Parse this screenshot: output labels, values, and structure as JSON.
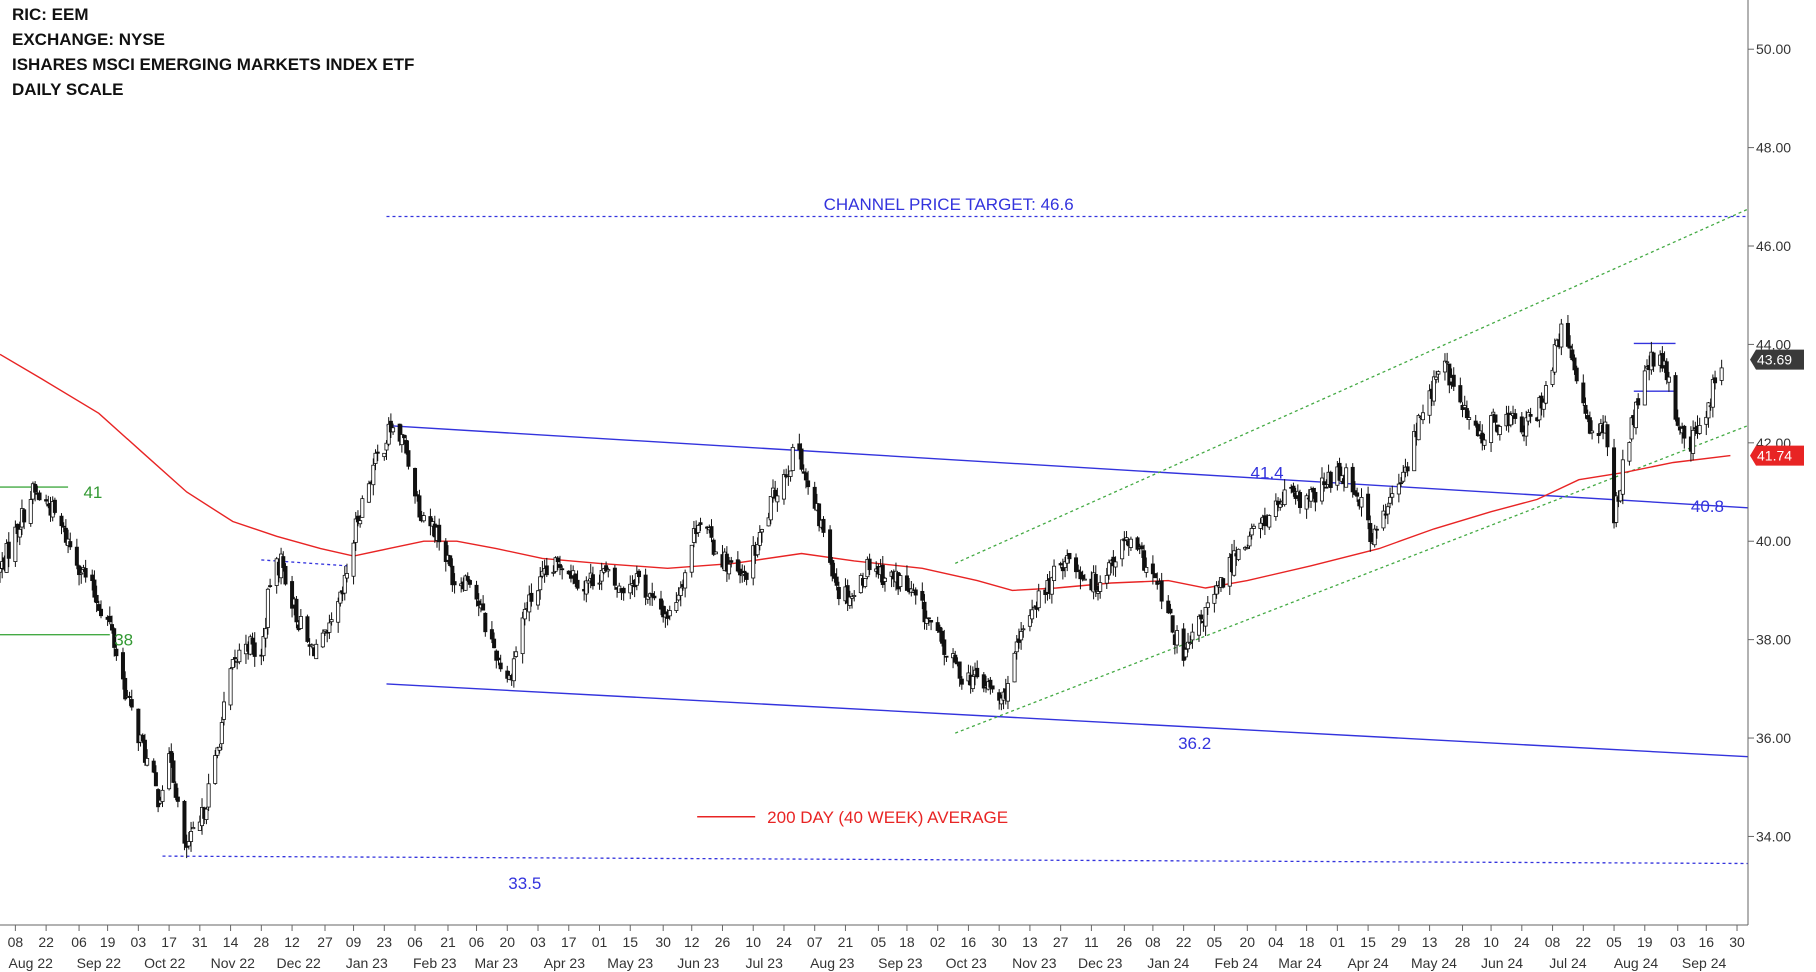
{
  "header": {
    "ric": "RIC: EEM",
    "exchange": "EXCHANGE: NYSE",
    "name": "ISHARES MSCI EMERGING MARKETS INDEX ETF",
    "scale": "DAILY SCALE"
  },
  "chart_data": {
    "type": "candlestick",
    "y_axis": {
      "position": "right",
      "range": [
        32.2,
        51.0
      ],
      "ticks": [
        34.0,
        36.0,
        38.0,
        40.0,
        42.0,
        44.0,
        46.0,
        48.0,
        50.0
      ]
    },
    "x_axis": {
      "range": [
        "2022-08-01",
        "2024-10-05"
      ],
      "day_ticks": [
        {
          "date": "2022-08-08",
          "label": "08"
        },
        {
          "date": "2022-08-22",
          "label": "22"
        },
        {
          "date": "2022-09-06",
          "label": "06"
        },
        {
          "date": "2022-09-19",
          "label": "19"
        },
        {
          "date": "2022-10-03",
          "label": "03"
        },
        {
          "date": "2022-10-17",
          "label": "17"
        },
        {
          "date": "2022-10-31",
          "label": "31"
        },
        {
          "date": "2022-11-14",
          "label": "14"
        },
        {
          "date": "2022-11-28",
          "label": "28"
        },
        {
          "date": "2022-12-12",
          "label": "12"
        },
        {
          "date": "2022-12-27",
          "label": "27"
        },
        {
          "date": "2023-01-09",
          "label": "09"
        },
        {
          "date": "2023-01-23",
          "label": "23"
        },
        {
          "date": "2023-02-06",
          "label": "06"
        },
        {
          "date": "2023-02-21",
          "label": "21"
        },
        {
          "date": "2023-03-06",
          "label": "06"
        },
        {
          "date": "2023-03-20",
          "label": "20"
        },
        {
          "date": "2023-04-03",
          "label": "03"
        },
        {
          "date": "2023-04-17",
          "label": "17"
        },
        {
          "date": "2023-05-01",
          "label": "01"
        },
        {
          "date": "2023-05-15",
          "label": "15"
        },
        {
          "date": "2023-05-30",
          "label": "30"
        },
        {
          "date": "2023-06-12",
          "label": "12"
        },
        {
          "date": "2023-06-26",
          "label": "26"
        },
        {
          "date": "2023-07-10",
          "label": "10"
        },
        {
          "date": "2023-07-24",
          "label": "24"
        },
        {
          "date": "2023-08-07",
          "label": "07"
        },
        {
          "date": "2023-08-21",
          "label": "21"
        },
        {
          "date": "2023-09-05",
          "label": "05"
        },
        {
          "date": "2023-09-18",
          "label": "18"
        },
        {
          "date": "2023-10-02",
          "label": "02"
        },
        {
          "date": "2023-10-16",
          "label": "16"
        },
        {
          "date": "2023-10-30",
          "label": "30"
        },
        {
          "date": "2023-11-13",
          "label": "13"
        },
        {
          "date": "2023-11-27",
          "label": "27"
        },
        {
          "date": "2023-12-11",
          "label": "11"
        },
        {
          "date": "2023-12-26",
          "label": "26"
        },
        {
          "date": "2024-01-08",
          "label": "08"
        },
        {
          "date": "2024-01-22",
          "label": "22"
        },
        {
          "date": "2024-02-05",
          "label": "05"
        },
        {
          "date": "2024-02-20",
          "label": "20"
        },
        {
          "date": "2024-03-04",
          "label": "04"
        },
        {
          "date": "2024-03-18",
          "label": "18"
        },
        {
          "date": "2024-04-01",
          "label": "01"
        },
        {
          "date": "2024-04-15",
          "label": "15"
        },
        {
          "date": "2024-04-29",
          "label": "29"
        },
        {
          "date": "2024-05-13",
          "label": "13"
        },
        {
          "date": "2024-05-28",
          "label": "28"
        },
        {
          "date": "2024-06-10",
          "label": "10"
        },
        {
          "date": "2024-06-24",
          "label": "24"
        },
        {
          "date": "2024-07-08",
          "label": "08"
        },
        {
          "date": "2024-07-22",
          "label": "22"
        },
        {
          "date": "2024-08-05",
          "label": "05"
        },
        {
          "date": "2024-08-19",
          "label": "19"
        },
        {
          "date": "2024-09-03",
          "label": "03"
        },
        {
          "date": "2024-09-16",
          "label": "16"
        },
        {
          "date": "2024-09-30",
          "label": "30"
        }
      ],
      "month_labels": [
        {
          "date": "2022-08-15",
          "label": "Aug 22"
        },
        {
          "date": "2022-09-15",
          "label": "Sep 22"
        },
        {
          "date": "2022-10-15",
          "label": "Oct 22"
        },
        {
          "date": "2022-11-15",
          "label": "Nov 22"
        },
        {
          "date": "2022-12-15",
          "label": "Dec 22"
        },
        {
          "date": "2023-01-15",
          "label": "Jan 23"
        },
        {
          "date": "2023-02-15",
          "label": "Feb 23"
        },
        {
          "date": "2023-03-15",
          "label": "Mar 23"
        },
        {
          "date": "2023-04-15",
          "label": "Apr 23"
        },
        {
          "date": "2023-05-15",
          "label": "May 23"
        },
        {
          "date": "2023-06-15",
          "label": "Jun 23"
        },
        {
          "date": "2023-07-15",
          "label": "Jul 23"
        },
        {
          "date": "2023-08-15",
          "label": "Aug 23"
        },
        {
          "date": "2023-09-15",
          "label": "Sep 23"
        },
        {
          "date": "2023-10-15",
          "label": "Oct 23"
        },
        {
          "date": "2023-11-15",
          "label": "Nov 23"
        },
        {
          "date": "2023-12-15",
          "label": "Dec 23"
        },
        {
          "date": "2024-01-15",
          "label": "Jan 24"
        },
        {
          "date": "2024-02-15",
          "label": "Feb 24"
        },
        {
          "date": "2024-03-15",
          "label": "Mar 24"
        },
        {
          "date": "2024-04-15",
          "label": "Apr 24"
        },
        {
          "date": "2024-05-15",
          "label": "May 24"
        },
        {
          "date": "2024-06-15",
          "label": "Jun 24"
        },
        {
          "date": "2024-07-15",
          "label": "Jul 24"
        },
        {
          "date": "2024-08-15",
          "label": "Aug 24"
        },
        {
          "date": "2024-09-15",
          "label": "Sep 24"
        }
      ]
    },
    "price_path": [
      [
        "2022-08-01",
        39.4
      ],
      [
        "2022-08-10",
        40.4
      ],
      [
        "2022-08-16",
        41.0
      ],
      [
        "2022-08-24",
        40.7
      ],
      [
        "2022-09-01",
        40.0
      ],
      [
        "2022-09-12",
        39.0
      ],
      [
        "2022-09-20",
        38.3
      ],
      [
        "2022-09-28",
        36.8
      ],
      [
        "2022-10-05",
        35.8
      ],
      [
        "2022-10-12",
        34.8
      ],
      [
        "2022-10-18",
        35.6
      ],
      [
        "2022-10-24",
        33.7
      ],
      [
        "2022-10-31",
        34.2
      ],
      [
        "2022-11-07",
        35.5
      ],
      [
        "2022-11-10",
        36.3
      ],
      [
        "2022-11-14",
        37.3
      ],
      [
        "2022-11-21",
        38.0
      ],
      [
        "2022-11-28",
        37.6
      ],
      [
        "2022-12-02",
        39.2
      ],
      [
        "2022-12-07",
        39.6
      ],
      [
        "2022-12-14",
        38.5
      ],
      [
        "2022-12-20",
        37.8
      ],
      [
        "2022-12-28",
        38.0
      ],
      [
        "2023-01-04",
        38.9
      ],
      [
        "2023-01-11",
        40.5
      ],
      [
        "2023-01-18",
        41.5
      ],
      [
        "2023-01-26",
        42.3
      ],
      [
        "2023-02-01",
        42.0
      ],
      [
        "2023-02-08",
        40.7
      ],
      [
        "2023-02-16",
        40.2
      ],
      [
        "2023-02-24",
        39.2
      ],
      [
        "2023-03-03",
        39.3
      ],
      [
        "2023-03-10",
        38.3
      ],
      [
        "2023-03-16",
        37.6
      ],
      [
        "2023-03-21",
        37.2
      ],
      [
        "2023-03-28",
        38.6
      ],
      [
        "2023-04-05",
        39.2
      ],
      [
        "2023-04-14",
        39.6
      ],
      [
        "2023-04-24",
        39.1
      ],
      [
        "2023-05-02",
        39.4
      ],
      [
        "2023-05-10",
        39.0
      ],
      [
        "2023-05-18",
        39.3
      ],
      [
        "2023-05-26",
        38.7
      ],
      [
        "2023-06-02",
        38.5
      ],
      [
        "2023-06-09",
        39.4
      ],
      [
        "2023-06-15",
        40.5
      ],
      [
        "2023-06-22",
        39.9
      ],
      [
        "2023-06-29",
        39.5
      ],
      [
        "2023-07-05",
        39.2
      ],
      [
        "2023-07-12",
        39.9
      ],
      [
        "2023-07-20",
        41.0
      ],
      [
        "2023-07-28",
        41.7
      ],
      [
        "2023-07-31",
        41.9
      ],
      [
        "2023-08-04",
        41.0
      ],
      [
        "2023-08-11",
        40.2
      ],
      [
        "2023-08-18",
        39.0
      ],
      [
        "2023-08-25",
        38.9
      ],
      [
        "2023-09-01",
        39.6
      ],
      [
        "2023-09-08",
        39.3
      ],
      [
        "2023-09-15",
        39.2
      ],
      [
        "2023-09-22",
        38.8
      ],
      [
        "2023-09-29",
        38.3
      ],
      [
        "2023-10-06",
        37.7
      ],
      [
        "2023-10-13",
        37.3
      ],
      [
        "2023-10-20",
        37.2
      ],
      [
        "2023-10-26",
        37.0
      ],
      [
        "2023-10-31",
        36.7
      ],
      [
        "2023-11-06",
        37.6
      ],
      [
        "2023-11-14",
        38.7
      ],
      [
        "2023-11-22",
        39.1
      ],
      [
        "2023-11-29",
        39.7
      ],
      [
        "2023-12-06",
        39.4
      ],
      [
        "2023-12-13",
        39.1
      ],
      [
        "2023-12-20",
        39.6
      ],
      [
        "2023-12-27",
        40.0
      ],
      [
        "2024-01-04",
        39.6
      ],
      [
        "2024-01-11",
        39.0
      ],
      [
        "2024-01-17",
        38.2
      ],
      [
        "2024-01-22",
        37.6
      ],
      [
        "2024-01-30",
        38.4
      ],
      [
        "2024-02-07",
        39.0
      ],
      [
        "2024-02-15",
        39.8
      ],
      [
        "2024-02-23",
        40.2
      ],
      [
        "2024-03-01",
        40.5
      ],
      [
        "2024-03-08",
        40.9
      ],
      [
        "2024-03-15",
        40.8
      ],
      [
        "2024-03-22",
        40.9
      ],
      [
        "2024-03-29",
        41.3
      ],
      [
        "2024-04-05",
        41.4
      ],
      [
        "2024-04-12",
        40.8
      ],
      [
        "2024-04-17",
        40.0
      ],
      [
        "2024-04-24",
        40.7
      ],
      [
        "2024-05-01",
        41.3
      ],
      [
        "2024-05-08",
        42.4
      ],
      [
        "2024-05-15",
        43.2
      ],
      [
        "2024-05-20",
        43.6
      ],
      [
        "2024-05-27",
        42.8
      ],
      [
        "2024-06-04",
        42.1
      ],
      [
        "2024-06-11",
        42.4
      ],
      [
        "2024-06-18",
        42.5
      ],
      [
        "2024-06-25",
        42.3
      ],
      [
        "2024-07-01",
        42.6
      ],
      [
        "2024-07-08",
        43.6
      ],
      [
        "2024-07-12",
        44.3
      ],
      [
        "2024-07-18",
        43.5
      ],
      [
        "2024-07-25",
        42.4
      ],
      [
        "2024-08-01",
        42.2
      ],
      [
        "2024-08-05",
        40.5
      ],
      [
        "2024-08-09",
        41.5
      ],
      [
        "2024-08-16",
        42.9
      ],
      [
        "2024-08-22",
        43.7
      ],
      [
        "2024-08-28",
        43.5
      ],
      [
        "2024-09-04",
        42.3
      ],
      [
        "2024-09-09",
        42.0
      ],
      [
        "2024-09-13",
        42.3
      ],
      [
        "2024-09-19",
        43.1
      ],
      [
        "2024-09-23",
        43.69
      ]
    ],
    "last_price": {
      "date": "2024-09-23",
      "value": 43.69,
      "label": "43.69"
    },
    "moving_average": {
      "name": "200 DAY (40 WEEK) AVERAGE",
      "color": "#e82424",
      "last_label": "41.74",
      "points": [
        [
          "2022-08-01",
          43.8
        ],
        [
          "2022-08-20",
          43.3
        ],
        [
          "2022-09-15",
          42.6
        ],
        [
          "2022-10-05",
          41.8
        ],
        [
          "2022-10-25",
          41.0
        ],
        [
          "2022-11-15",
          40.4
        ],
        [
          "2022-12-05",
          40.1
        ],
        [
          "2022-12-25",
          39.85
        ],
        [
          "2023-01-09",
          39.7
        ],
        [
          "2023-01-25",
          39.85
        ],
        [
          "2023-02-10",
          40.0
        ],
        [
          "2023-02-25",
          40.0
        ],
        [
          "2023-03-15",
          39.85
        ],
        [
          "2023-04-05",
          39.65
        ],
        [
          "2023-05-01",
          39.55
        ],
        [
          "2023-06-01",
          39.45
        ],
        [
          "2023-07-01",
          39.55
        ],
        [
          "2023-08-01",
          39.75
        ],
        [
          "2023-08-25",
          39.6
        ],
        [
          "2023-09-25",
          39.45
        ],
        [
          "2023-10-20",
          39.2
        ],
        [
          "2023-11-05",
          39.0
        ],
        [
          "2023-11-25",
          39.05
        ],
        [
          "2023-12-20",
          39.15
        ],
        [
          "2024-01-15",
          39.2
        ],
        [
          "2024-02-01",
          39.05
        ],
        [
          "2024-02-20",
          39.2
        ],
        [
          "2024-03-20",
          39.5
        ],
        [
          "2024-04-20",
          39.85
        ],
        [
          "2024-05-15",
          40.25
        ],
        [
          "2024-06-10",
          40.6
        ],
        [
          "2024-07-01",
          40.85
        ],
        [
          "2024-07-20",
          41.25
        ],
        [
          "2024-08-10",
          41.4
        ],
        [
          "2024-09-01",
          41.6
        ],
        [
          "2024-09-27",
          41.74
        ]
      ]
    },
    "trendlines": [
      {
        "name": "downtrend-channel-upper",
        "style": "solid",
        "color": "#3333dd",
        "points": [
          [
            "2023-01-24",
            42.35
          ],
          [
            "2024-10-05",
            40.68
          ]
        ]
      },
      {
        "name": "downtrend-channel-lower",
        "style": "solid",
        "color": "#3333dd",
        "points": [
          [
            "2023-01-24",
            37.1
          ],
          [
            "2024-10-05",
            35.62
          ]
        ]
      },
      {
        "name": "uptrend-channel-upper",
        "style": "dotted",
        "color": "#44aa44",
        "points": [
          [
            "2023-10-10",
            39.55
          ],
          [
            "2024-10-05",
            46.75
          ]
        ]
      },
      {
        "name": "uptrend-channel-lower",
        "style": "dotted",
        "color": "#44aa44",
        "points": [
          [
            "2023-10-10",
            36.1
          ],
          [
            "2024-10-05",
            42.35
          ]
        ]
      },
      {
        "name": "price-target-line",
        "style": "dotted",
        "color": "#3333dd",
        "points": [
          [
            "2023-01-24",
            46.6
          ],
          [
            "2024-10-05",
            46.6
          ]
        ]
      },
      {
        "name": "low-33.5-line",
        "style": "dotted",
        "color": "#3333dd",
        "points": [
          [
            "2022-10-14",
            33.6
          ],
          [
            "2024-10-05",
            33.45
          ]
        ]
      },
      {
        "name": "resistance-39.6-line",
        "style": "dotted",
        "color": "#3333dd",
        "points": [
          [
            "2022-11-28",
            39.62
          ],
          [
            "2023-01-06",
            39.5
          ]
        ]
      },
      {
        "name": "level-41-line",
        "style": "solid",
        "color": "#44aa44",
        "points": [
          [
            "2022-08-01",
            41.1
          ],
          [
            "2022-09-01",
            41.1
          ]
        ]
      },
      {
        "name": "level-38-line",
        "style": "solid",
        "color": "#44aa44",
        "points": [
          [
            "2022-08-01",
            38.1
          ],
          [
            "2022-09-20",
            38.1
          ]
        ]
      },
      {
        "name": "flag-top-line",
        "style": "solid",
        "color": "#3333dd",
        "points": [
          [
            "2024-08-14",
            44.02
          ],
          [
            "2024-09-02",
            44.02
          ]
        ]
      },
      {
        "name": "flag-bottom-line",
        "style": "solid",
        "color": "#3333dd",
        "points": [
          [
            "2024-08-14",
            43.05
          ],
          [
            "2024-09-02",
            43.05
          ]
        ]
      }
    ],
    "annotations": [
      {
        "text": "CHANNEL PRICE TARGET: 46.6",
        "x": "2023-10-07",
        "y": 46.85,
        "color": "#3333dd",
        "anchor": "middle"
      },
      {
        "text": "41",
        "x": "2022-09-08",
        "y": 41.0,
        "color": "#339933",
        "anchor": "start"
      },
      {
        "text": "38",
        "x": "2022-09-22",
        "y": 38.0,
        "color": "#339933",
        "anchor": "start"
      },
      {
        "text": "41.4",
        "x": "2024-02-29",
        "y": 41.4,
        "color": "#3333dd",
        "anchor": "middle"
      },
      {
        "text": "40.8",
        "x": "2024-09-09",
        "y": 40.72,
        "color": "#3333dd",
        "anchor": "start"
      },
      {
        "text": "36.2",
        "x": "2024-01-27",
        "y": 35.9,
        "color": "#3333dd",
        "anchor": "middle"
      },
      {
        "text": "33.5",
        "x": "2023-03-28",
        "y": 33.05,
        "color": "#3333dd",
        "anchor": "middle"
      }
    ],
    "legend": {
      "label": "200 DAY (40 WEEK) AVERAGE",
      "color": "#e82424",
      "x": "2023-07-20",
      "y": 34.4
    },
    "grid": false
  }
}
